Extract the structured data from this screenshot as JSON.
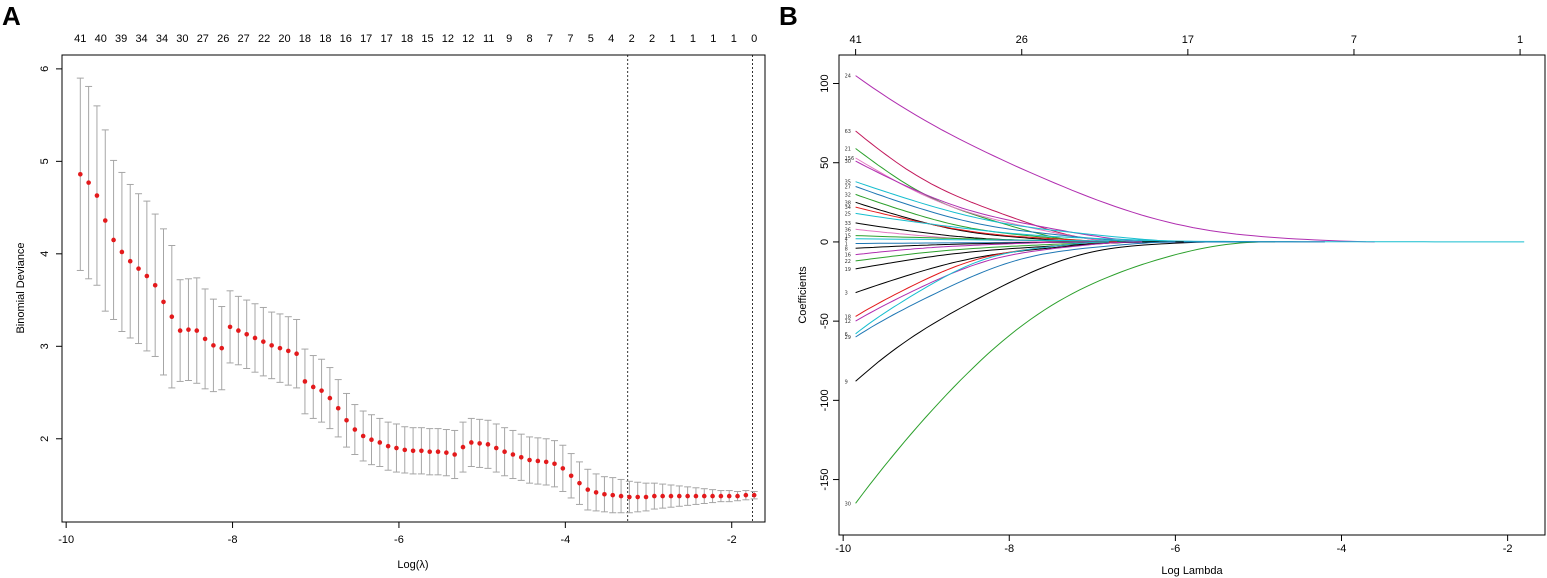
{
  "chart_data": [
    {
      "panel": "A",
      "type": "scatter",
      "title": "",
      "xlabel": "Log(λ)",
      "ylabel": "Binomial Deviance",
      "xlim": [
        -10.05,
        -1.6
      ],
      "ylim": [
        1.1,
        6.15
      ],
      "x_ticks": [
        "-10",
        "-8",
        "-6",
        "-4",
        "-2"
      ],
      "y_ticks": [
        "2",
        "3",
        "4",
        "5",
        "6"
      ],
      "top_labels": [
        "41",
        "40",
        "39",
        "34",
        "34",
        "30",
        "27",
        "26",
        "27",
        "22",
        "20",
        "18",
        "18",
        "16",
        "17",
        "17",
        "18",
        "15",
        "12",
        "12",
        "11",
        "9",
        "8",
        "7",
        "7",
        "5",
        "4",
        "2",
        "2",
        "1",
        "1",
        "1",
        "1",
        "0"
      ],
      "vlines": [
        -3.25,
        -1.75
      ],
      "point_color": "#e31a1c",
      "errorbar_color": "#a6a6a6",
      "series": [
        {
          "name": "Binomial Deviance",
          "x": [
            -9.83,
            -9.73,
            -9.63,
            -9.53,
            -9.43,
            -9.33,
            -9.23,
            -9.13,
            -9.03,
            -8.93,
            -8.83,
            -8.73,
            -8.63,
            -8.53,
            -8.43,
            -8.33,
            -8.23,
            -8.13,
            -8.03,
            -7.93,
            -7.83,
            -7.73,
            -7.63,
            -7.53,
            -7.43,
            -7.33,
            -7.23,
            -7.13,
            -7.03,
            -6.93,
            -6.83,
            -6.73,
            -6.63,
            -6.53,
            -6.43,
            -6.33,
            -6.23,
            -6.13,
            -6.03,
            -5.93,
            -5.83,
            -5.73,
            -5.63,
            -5.53,
            -5.43,
            -5.33,
            -5.23,
            -5.13,
            -5.03,
            -4.93,
            -4.83,
            -4.73,
            -4.63,
            -4.53,
            -4.43,
            -4.33,
            -4.23,
            -4.13,
            -4.03,
            -3.93,
            -3.83,
            -3.73,
            -3.63,
            -3.53,
            -3.43,
            -3.33,
            -3.23,
            -3.13,
            -3.03,
            -2.93,
            -2.83,
            -2.73,
            -2.63,
            -2.53,
            -2.43,
            -2.33,
            -2.23,
            -2.13,
            -2.03,
            -1.93,
            -1.83,
            -1.73
          ],
          "y": [
            4.86,
            4.77,
            4.63,
            4.36,
            4.15,
            4.02,
            3.92,
            3.84,
            3.76,
            3.66,
            3.48,
            3.32,
            3.17,
            3.18,
            3.17,
            3.08,
            3.01,
            2.98,
            3.21,
            3.17,
            3.13,
            3.09,
            3.05,
            3.01,
            2.98,
            2.95,
            2.92,
            2.62,
            2.56,
            2.52,
            2.44,
            2.33,
            2.2,
            2.1,
            2.03,
            1.99,
            1.96,
            1.92,
            1.9,
            1.88,
            1.87,
            1.87,
            1.86,
            1.86,
            1.85,
            1.83,
            1.91,
            1.96,
            1.95,
            1.94,
            1.9,
            1.86,
            1.83,
            1.8,
            1.77,
            1.76,
            1.75,
            1.73,
            1.68,
            1.6,
            1.52,
            1.45,
            1.42,
            1.4,
            1.39,
            1.38,
            1.37,
            1.37,
            1.37,
            1.38,
            1.38,
            1.38,
            1.38,
            1.38,
            1.38,
            1.38,
            1.38,
            1.38,
            1.38,
            1.38,
            1.39,
            1.39
          ],
          "lower": [
            3.82,
            3.73,
            3.66,
            3.38,
            3.29,
            3.16,
            3.09,
            3.03,
            2.95,
            2.89,
            2.69,
            2.55,
            2.62,
            2.63,
            2.6,
            2.54,
            2.51,
            2.53,
            2.82,
            2.8,
            2.76,
            2.72,
            2.68,
            2.65,
            2.61,
            2.58,
            2.55,
            2.27,
            2.22,
            2.18,
            2.11,
            2.02,
            1.91,
            1.83,
            1.76,
            1.72,
            1.7,
            1.66,
            1.64,
            1.63,
            1.62,
            1.62,
            1.61,
            1.61,
            1.6,
            1.57,
            1.64,
            1.7,
            1.69,
            1.68,
            1.64,
            1.6,
            1.57,
            1.55,
            1.52,
            1.51,
            1.5,
            1.48,
            1.43,
            1.36,
            1.29,
            1.23,
            1.22,
            1.21,
            1.2,
            1.2,
            1.2,
            1.21,
            1.22,
            1.24,
            1.25,
            1.26,
            1.27,
            1.28,
            1.29,
            1.3,
            1.31,
            1.32,
            1.32,
            1.33,
            1.34,
            1.35
          ],
          "upper": [
            5.9,
            5.81,
            5.6,
            5.34,
            5.01,
            4.88,
            4.75,
            4.65,
            4.57,
            4.43,
            4.27,
            4.09,
            3.72,
            3.73,
            3.74,
            3.62,
            3.51,
            3.43,
            3.6,
            3.54,
            3.5,
            3.46,
            3.42,
            3.37,
            3.35,
            3.32,
            3.29,
            2.97,
            2.9,
            2.86,
            2.77,
            2.64,
            2.49,
            2.37,
            2.3,
            2.26,
            2.22,
            2.18,
            2.16,
            2.13,
            2.12,
            2.12,
            2.11,
            2.11,
            2.1,
            2.09,
            2.18,
            2.22,
            2.21,
            2.2,
            2.16,
            2.12,
            2.09,
            2.05,
            2.02,
            2.01,
            2.0,
            1.98,
            1.93,
            1.84,
            1.75,
            1.67,
            1.62,
            1.59,
            1.58,
            1.56,
            1.54,
            1.53,
            1.52,
            1.52,
            1.51,
            1.5,
            1.49,
            1.48,
            1.47,
            1.46,
            1.45,
            1.44,
            1.44,
            1.43,
            1.44,
            1.43
          ]
        }
      ]
    },
    {
      "panel": "B",
      "type": "line",
      "title": "",
      "xlabel": "Log Lambda",
      "ylabel": "Coefficients",
      "xlim": [
        -10.05,
        -1.55
      ],
      "ylim": [
        -185,
        118
      ],
      "x_ticks": [
        "-10",
        "-8",
        "-6",
        "-4",
        "-2"
      ],
      "y_ticks": [
        "100",
        "50",
        "0",
        "-50",
        "-100",
        "-150"
      ],
      "top_axis": {
        "positions": [
          -9.85,
          -7.85,
          -5.85,
          -3.85,
          -1.85
        ],
        "labels": [
          "41",
          "26",
          "17",
          "7",
          "1"
        ]
      },
      "x_start": -9.85,
      "series": [
        {
          "name": "24",
          "color": "#b02eb0",
          "y0": 105,
          "end": -3.6
        },
        {
          "name": "30",
          "color": "#2ca02c",
          "y0": -165,
          "end": -4.8
        },
        {
          "name": "9",
          "color": "#000000",
          "y0": -88,
          "end": -5.6
        },
        {
          "name": "63",
          "color": "#c2185b",
          "y0": 70,
          "end": -6.2
        },
        {
          "name": "21",
          "color": "#2ca02c",
          "y0": 59,
          "end": -6.6
        },
        {
          "name": "156",
          "color": "#e377c2",
          "y0": 53,
          "end": -6.2
        },
        {
          "name": "30b",
          "color": "#b02eb0",
          "y0": 51,
          "end": -5.8
        },
        {
          "name": "35",
          "color": "#17becf",
          "y0": 38,
          "end": -5.4
        },
        {
          "name": "27",
          "color": "#1f77b4",
          "y0": 35,
          "end": -6.0
        },
        {
          "name": "32",
          "color": "#2ca02c",
          "y0": 30,
          "end": -6.5
        },
        {
          "name": "38",
          "color": "#000000",
          "y0": 25,
          "end": -6.8
        },
        {
          "name": "34",
          "color": "#e31a1c",
          "y0": 22,
          "end": -6.4
        },
        {
          "name": "25",
          "color": "#17becf",
          "y0": 18,
          "end": -5.2
        },
        {
          "name": "33",
          "color": "#000000",
          "y0": 12,
          "end": -6.9
        },
        {
          "name": "36",
          "color": "#e377c2",
          "y0": 8,
          "end": -7.0
        },
        {
          "name": "15",
          "color": "#2ca02c",
          "y0": 4,
          "end": -5.0
        },
        {
          "name": "4",
          "color": "#17becf",
          "y0": 2,
          "end": -1.8
        },
        {
          "name": "1",
          "color": "#1f77b4",
          "y0": -1,
          "end": -4.2
        },
        {
          "name": "8",
          "color": "#000000",
          "y0": -4,
          "end": -6.6
        },
        {
          "name": "16",
          "color": "#b02eb0",
          "y0": -8,
          "end": -6.8
        },
        {
          "name": "22",
          "color": "#2ca02c",
          "y0": -12,
          "end": -6.1
        },
        {
          "name": "19",
          "color": "#000000",
          "y0": -17,
          "end": -5.9
        },
        {
          "name": "3",
          "color": "#000000",
          "y0": -32,
          "end": -6.2
        },
        {
          "name": "18",
          "color": "#e31a1c",
          "y0": -47,
          "end": -6.7
        },
        {
          "name": "12",
          "color": "#b02eb0",
          "y0": -50,
          "end": -6.4
        },
        {
          "name": "6",
          "color": "#17becf",
          "y0": -58,
          "end": -6.8
        },
        {
          "name": "29",
          "color": "#1f77b4",
          "y0": -60,
          "end": -6.0
        }
      ]
    }
  ],
  "panels": {
    "a": "A",
    "b": "B"
  }
}
